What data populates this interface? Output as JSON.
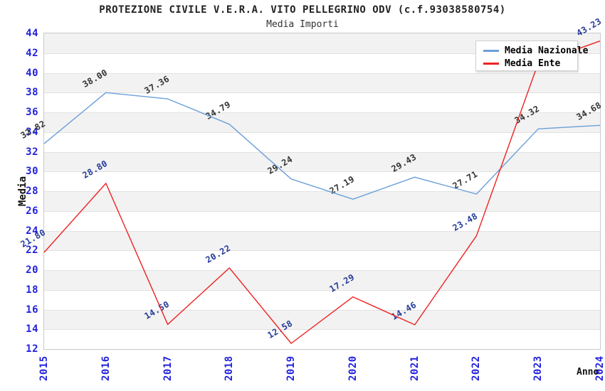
{
  "title": "PROTEZIONE CIVILE V.E.R.A. VITO PELLEGRINO ODV (c.f.93038580754)",
  "subtitle": "Media Importi",
  "chart_data": {
    "type": "line",
    "x": [
      "2015",
      "2016",
      "2017",
      "2018",
      "2019",
      "2020",
      "2021",
      "2022",
      "2023",
      "2024"
    ],
    "xlabel": "Anno",
    "ylabel": "Media",
    "ylim": [
      12,
      44
    ],
    "ytick_step": 2,
    "grid": "horizontal-alternating-bands",
    "legend_position": "top-right-inside",
    "series": [
      {
        "name": "Media Nazionale",
        "color": "#6a9fd8",
        "label_color": "#333333",
        "values": [
          32.82,
          38.0,
          37.36,
          34.79,
          29.24,
          27.19,
          29.43,
          27.71,
          34.32,
          34.68
        ],
        "labels": [
          "32.82",
          "38.00",
          "37.36",
          "34.79",
          "29.24",
          "27.19",
          "29.43",
          "27.71",
          "34.32",
          "34.68"
        ]
      },
      {
        "name": "Media Ente",
        "color": "#ee2222",
        "label_color": "#223a99",
        "values": [
          21.8,
          28.8,
          14.5,
          20.22,
          12.58,
          17.29,
          14.46,
          23.48,
          41.0,
          43.23
        ],
        "labels": [
          "21.80",
          "28.80",
          "14.50",
          "20.22",
          "12.58",
          "17.29",
          "14.46",
          "23.48",
          "",
          "43.23"
        ]
      }
    ]
  },
  "colors": {
    "tick_label": "#2222dd",
    "band_gray": "#f2f2f2",
    "gridline": "#e2e2e2",
    "plot_border": "#c9c9c9",
    "title": "#222222",
    "subtitle": "#333333"
  }
}
